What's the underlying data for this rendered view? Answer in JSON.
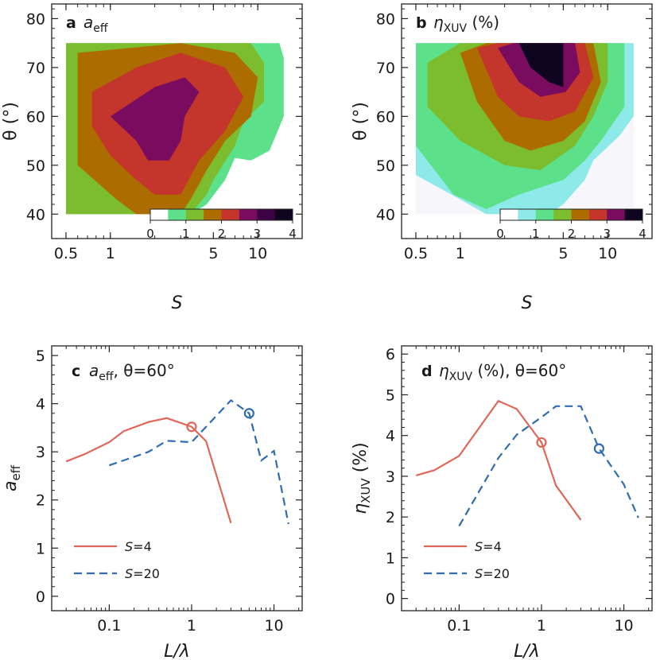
{
  "chart_data": [
    {
      "panel": "a",
      "type": "heatmap",
      "title_letter": "a",
      "title": "a_eff",
      "title_main": "a",
      "title_sub": "eff",
      "xlabel": "S",
      "ylabel": "θ (°)",
      "x_scale": "log",
      "xlim": [
        0.4,
        20
      ],
      "ylim": [
        35,
        83
      ],
      "x_ticks": [
        0.5,
        1,
        5,
        10
      ],
      "x_tick_labels": [
        "0.5",
        "1",
        "5",
        "10"
      ],
      "y_ticks": [
        40,
        50,
        60,
        70,
        80
      ],
      "y_tick_labels": [
        "40",
        "50",
        "60",
        "70",
        "80"
      ],
      "colorbar": {
        "levels": [
          0,
          0.5,
          1,
          1.5,
          2,
          2.5,
          3,
          3.5,
          4
        ],
        "tick_values": [
          0,
          1,
          2,
          3,
          4
        ],
        "tick_labels": [
          "0",
          "1",
          "2",
          "3",
          "4"
        ],
        "colors": [
          "#ffffff",
          "#5ce08a",
          "#7bbd2e",
          "#ad6c00",
          "#c4352b",
          "#7a0c5f",
          "#3d0345",
          "#0f0520"
        ]
      },
      "regions": [
        {
          "level": 1,
          "color": "#5ce08a",
          "polygon": [
            [
              0.5,
              75
            ],
            [
              14,
              75
            ],
            [
              15,
              72
            ],
            [
              15,
              60
            ],
            [
              12,
              53
            ],
            [
              9,
              51
            ],
            [
              7,
              51.5
            ],
            [
              6,
              47
            ],
            [
              4.5,
              42
            ],
            [
              3.5,
              40
            ],
            [
              0.5,
              40
            ]
          ]
        },
        {
          "level": 2,
          "color": "#7bbd2e",
          "polygon": [
            [
              0.5,
              75
            ],
            [
              9,
              75
            ],
            [
              11,
              71
            ],
            [
              11,
              63
            ],
            [
              8,
              59
            ],
            [
              7,
              54
            ],
            [
              5,
              47
            ],
            [
              4.5,
              44
            ],
            [
              3.5,
              40
            ],
            [
              0.5,
              40
            ]
          ]
        },
        {
          "level": 3,
          "color": "#ad6c00",
          "polygon": [
            [
              0.6,
              73
            ],
            [
              3,
              75
            ],
            [
              7,
              73
            ],
            [
              10,
              68
            ],
            [
              9,
              60
            ],
            [
              6,
              55
            ],
            [
              4.5,
              49
            ],
            [
              3.5,
              43
            ],
            [
              3,
              40
            ],
            [
              1.5,
              40
            ],
            [
              1.1,
              43
            ],
            [
              0.6,
              50
            ]
          ]
        },
        {
          "level": 4,
          "color": "#c4352b",
          "polygon": [
            [
              0.75,
              65
            ],
            [
              1.5,
              70
            ],
            [
              3,
              73
            ],
            [
              6,
              70
            ],
            [
              8,
              64
            ],
            [
              6,
              57
            ],
            [
              4,
              51
            ],
            [
              3,
              44
            ],
            [
              2,
              44
            ],
            [
              1.5,
              47
            ],
            [
              1,
              52
            ],
            [
              0.75,
              58
            ]
          ]
        },
        {
          "level": 5,
          "color": "#7a0c5f",
          "polygon": [
            [
              1,
              60
            ],
            [
              2,
              66
            ],
            [
              3.2,
              68
            ],
            [
              4,
              65
            ],
            [
              3.2,
              60
            ],
            [
              3,
              55
            ],
            [
              2.5,
              51
            ],
            [
              1.8,
              51
            ],
            [
              1.5,
              55
            ]
          ]
        }
      ]
    },
    {
      "panel": "b",
      "type": "heatmap",
      "title_letter": "b",
      "title": "η_XUV (%)",
      "title_main": "η",
      "title_sub": "XUV",
      "title_rest": " (%)",
      "xlabel": "S",
      "ylabel": "θ (°)",
      "x_scale": "log",
      "xlim": [
        0.4,
        20
      ],
      "ylim": [
        35,
        83
      ],
      "x_ticks": [
        0.5,
        1,
        5,
        10
      ],
      "x_tick_labels": [
        "0.5",
        "1",
        "5",
        "10"
      ],
      "y_ticks": [
        40,
        50,
        60,
        70,
        80
      ],
      "y_tick_labels": [
        "40",
        "50",
        "60",
        "70",
        "80"
      ],
      "colorbar": {
        "tick_values": [
          0,
          1,
          2,
          3,
          4
        ],
        "tick_labels": [
          "0",
          "1",
          "2",
          "3",
          "4"
        ],
        "colors": [
          "#ffffff",
          "#8deae8",
          "#5ce08a",
          "#7bbd2e",
          "#ad6c00",
          "#c4352b",
          "#7a0c5f",
          "#0f0520"
        ]
      },
      "regions": [
        {
          "level": 0,
          "color": "#f7f7fb",
          "polygon": [
            [
              0.5,
              75
            ],
            [
              15,
              75
            ],
            [
              15,
              40
            ],
            [
              0.5,
              40
            ]
          ]
        },
        {
          "level": 1,
          "color": "#8deae8",
          "polygon": [
            [
              0.5,
              75
            ],
            [
              15,
              75
            ],
            [
              15,
              60
            ],
            [
              12,
              56
            ],
            [
              8,
              51
            ],
            [
              7,
              47
            ],
            [
              5,
              42
            ],
            [
              4,
              40
            ],
            [
              1.5,
              40
            ],
            [
              1,
              43
            ],
            [
              0.5,
              48
            ]
          ]
        },
        {
          "level": 2,
          "color": "#5ce08a",
          "polygon": [
            [
              0.5,
              75
            ],
            [
              13,
              75
            ],
            [
              13,
              62
            ],
            [
              9,
              55
            ],
            [
              7,
              51
            ],
            [
              5,
              47
            ],
            [
              2.5,
              44
            ],
            [
              1.5,
              41
            ],
            [
              0.9,
              44
            ],
            [
              0.5,
              54
            ]
          ]
        },
        {
          "level": 3,
          "color": "#7bbd2e",
          "polygon": [
            [
              0.6,
              71
            ],
            [
              1,
              75
            ],
            [
              10,
              75
            ],
            [
              10,
              67
            ],
            [
              8,
              60
            ],
            [
              6,
              54
            ],
            [
              3.5,
              49
            ],
            [
              2,
              50
            ],
            [
              1,
              55
            ],
            [
              0.6,
              62
            ]
          ]
        },
        {
          "level": 4,
          "color": "#ad6c00",
          "polygon": [
            [
              1,
              73
            ],
            [
              1.5,
              75
            ],
            [
              8,
              75
            ],
            [
              9,
              67
            ],
            [
              7,
              59
            ],
            [
              5,
              55
            ],
            [
              3,
              53
            ],
            [
              2,
              55
            ],
            [
              1.3,
              63
            ]
          ]
        },
        {
          "level": 5,
          "color": "#c4352b",
          "polygon": [
            [
              1.3,
              74
            ],
            [
              1.8,
              75
            ],
            [
              7,
              75
            ],
            [
              8,
              68
            ],
            [
              6,
              61
            ],
            [
              4,
              59
            ],
            [
              2.5,
              60
            ],
            [
              1.8,
              64
            ]
          ]
        },
        {
          "level": 6,
          "color": "#7a0c5f",
          "polygon": [
            [
              1.8,
              74
            ],
            [
              2.3,
              75
            ],
            [
              6,
              75
            ],
            [
              6.5,
              69
            ],
            [
              5.2,
              65
            ],
            [
              3.5,
              64
            ],
            [
              2.5,
              67
            ]
          ]
        },
        {
          "level": 7,
          "color": "#0f0520",
          "polygon": [
            [
              2.5,
              75
            ],
            [
              5,
              75
            ],
            [
              5,
              66
            ],
            [
              4,
              67
            ],
            [
              3,
              70
            ]
          ]
        }
      ]
    },
    {
      "panel": "c",
      "type": "line",
      "title_letter": "c",
      "title": "a_eff, θ=60°",
      "title_main": "a",
      "title_sub": "eff",
      "title_rest": ", θ=60°",
      "xlabel": "L/λ",
      "ylabel": "a_eff",
      "ylabel_main": "a",
      "ylabel_sub": "eff",
      "x_scale": "log",
      "xlim": [
        0.02,
        22
      ],
      "ylim": [
        -0.3,
        5.2
      ],
      "x_ticks": [
        0.1,
        1,
        10
      ],
      "x_tick_labels": [
        "0.1",
        "1",
        "10"
      ],
      "y_ticks": [
        0,
        1,
        2,
        3,
        4,
        5
      ],
      "y_tick_labels": [
        "0",
        "1",
        "2",
        "3",
        "4",
        "5"
      ],
      "legend_position": "bottom-left",
      "series": [
        {
          "name": "S=4",
          "name_main": "S",
          "name_rest": "=4",
          "color": "#e0685a",
          "dash": "solid",
          "x": [
            0.03,
            0.05,
            0.1,
            0.15,
            0.3,
            0.5,
            1.0,
            1.5,
            3.0
          ],
          "y": [
            2.8,
            2.95,
            3.2,
            3.43,
            3.62,
            3.7,
            3.52,
            3.22,
            1.52
          ],
          "marker": {
            "x": 1.0,
            "y": 3.52
          }
        },
        {
          "name": "S=20",
          "name_main": "S",
          "name_rest": "=20",
          "color": "#2f6db0",
          "dash": "dashed",
          "x": [
            0.1,
            0.3,
            0.5,
            1.0,
            3.0,
            5.0,
            7.0,
            10.0,
            15.0
          ],
          "y": [
            2.72,
            3.0,
            3.23,
            3.2,
            4.07,
            3.8,
            2.82,
            3.02,
            1.5
          ],
          "marker": {
            "x": 5.0,
            "y": 3.8
          }
        }
      ]
    },
    {
      "panel": "d",
      "type": "line",
      "title_letter": "d",
      "title": "η_XUV (%), θ=60°",
      "title_main": "η",
      "title_sub": "XUV",
      "title_rest": " (%), θ=60°",
      "xlabel": "L/λ",
      "ylabel": "η_XUV (%)",
      "ylabel_main": "η",
      "ylabel_sub": "XUV",
      "ylabel_rest": " (%)",
      "x_scale": "log",
      "xlim": [
        0.02,
        22
      ],
      "ylim": [
        -0.3,
        6.2
      ],
      "x_ticks": [
        0.1,
        1,
        10
      ],
      "x_tick_labels": [
        "0.1",
        "1",
        "10"
      ],
      "y_ticks": [
        0,
        1,
        2,
        3,
        4,
        5,
        6
      ],
      "y_tick_labels": [
        "0",
        "1",
        "2",
        "3",
        "4",
        "5",
        "6"
      ],
      "legend_position": "bottom-left",
      "series": [
        {
          "name": "S=4",
          "name_main": "S",
          "name_rest": "=4",
          "color": "#e0685a",
          "dash": "solid",
          "x": [
            0.03,
            0.05,
            0.1,
            0.15,
            0.3,
            0.5,
            1.0,
            1.5,
            3.0
          ],
          "y": [
            3.02,
            3.15,
            3.5,
            4.0,
            4.85,
            4.65,
            3.83,
            2.77,
            1.93
          ],
          "marker": {
            "x": 1.0,
            "y": 3.83
          }
        },
        {
          "name": "S=20",
          "name_main": "S",
          "name_rest": "=20",
          "color": "#2f6db0",
          "dash": "dashed",
          "x": [
            0.1,
            0.3,
            0.5,
            1.0,
            1.5,
            3.0,
            5.0,
            10.0,
            15.0
          ],
          "y": [
            1.78,
            3.45,
            4.02,
            4.45,
            4.72,
            4.72,
            3.68,
            2.8,
            1.98
          ],
          "marker": {
            "x": 5.0,
            "y": 3.68
          }
        }
      ]
    }
  ]
}
